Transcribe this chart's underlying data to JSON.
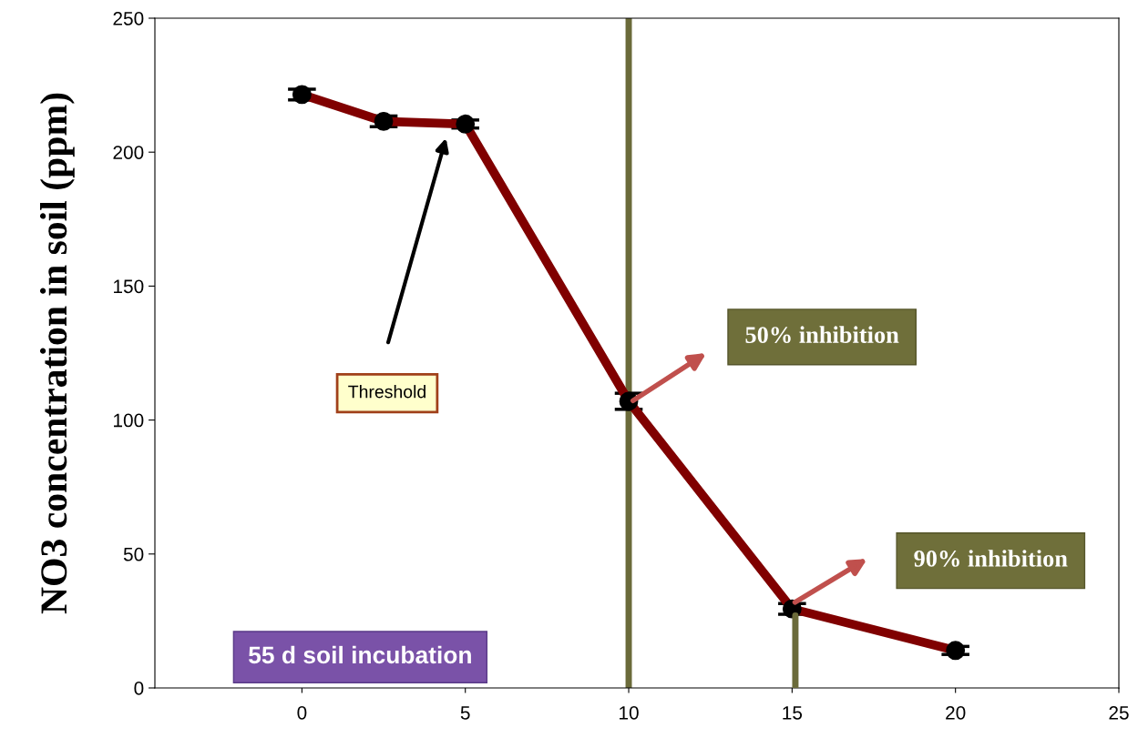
{
  "chart_data": {
    "type": "line",
    "ylabel": "NO3 concentration in soil (ppm)",
    "x": [
      0,
      2.5,
      5,
      10,
      15,
      20
    ],
    "series": [
      {
        "color": "#800000",
        "values": [
          221.5,
          211.5,
          210.5,
          107,
          29.5,
          14
        ],
        "errors": [
          2,
          2,
          1.5,
          3,
          2,
          1.5
        ],
        "marker": "circle"
      },
      {
        "color": "#6b6b3a",
        "x": [
          15.1,
          15.1
        ],
        "values": [
          27,
          0
        ],
        "marker": "none"
      }
    ],
    "xlim": [
      -4.5,
      25
    ],
    "xticks": [
      0,
      5,
      10,
      15,
      20,
      25
    ],
    "ylim": [
      0,
      250
    ],
    "yticks": [
      0,
      50,
      100,
      150,
      200,
      250
    ],
    "grid": false,
    "line_style": "solid",
    "ref_lines": [
      {
        "axis": "x",
        "value": 10,
        "color": "#6b6b3a"
      }
    ],
    "annotations": [
      "Threshold",
      "50% inhibition",
      "90% inhibition",
      "55 d soil incubation"
    ]
  }
}
